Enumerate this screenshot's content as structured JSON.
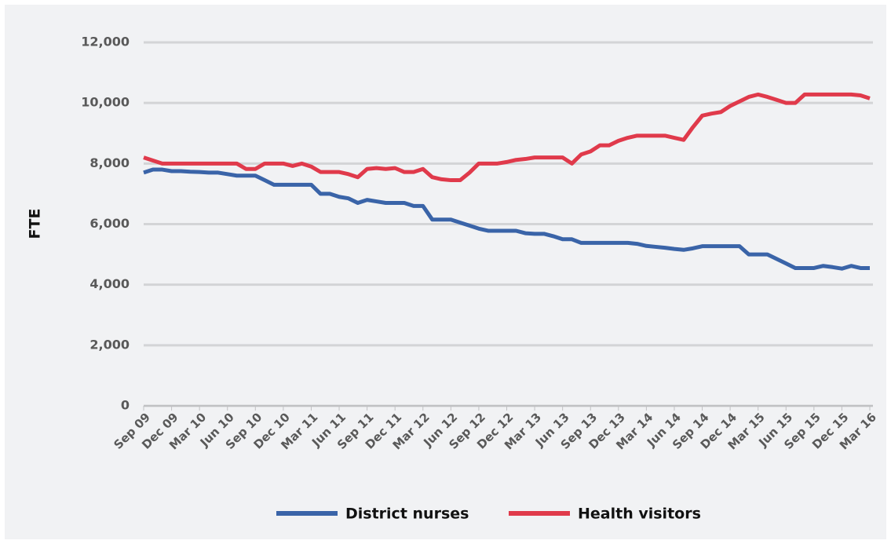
{
  "chart_data": {
    "type": "line",
    "y_label": "FTE",
    "categories": [
      "Sep 09",
      null,
      null,
      "Dec 09",
      null,
      null,
      "Mar 10",
      null,
      null,
      "Jun 10",
      null,
      null,
      "Sep 10",
      null,
      null,
      "Dec 10",
      null,
      null,
      "Mar 11",
      null,
      null,
      "Jun 11",
      null,
      null,
      "Sep 11",
      null,
      null,
      "Dec 11",
      null,
      null,
      "Mar 12",
      null,
      null,
      "Jun 12",
      null,
      null,
      "Sep 12",
      null,
      null,
      "Dec 12",
      null,
      null,
      "Mar 13",
      null,
      null,
      "Jun 13",
      null,
      null,
      "Sep 13",
      null,
      null,
      "Dec 13",
      null,
      null,
      "Mar 14",
      null,
      null,
      "Jun 14",
      null,
      null,
      "Sep 14",
      null,
      null,
      "Dec 14",
      null,
      null,
      "Mar 15",
      null,
      null,
      "Jun 15",
      null,
      null,
      "Sep 15",
      null,
      null,
      "Dec 15",
      null,
      null,
      "Mar 16"
    ],
    "series": [
      {
        "name": "District nurses",
        "color": "#3a64a8",
        "values": [
          7700,
          7800,
          7800,
          7750,
          7750,
          7730,
          7720,
          7700,
          7700,
          7650,
          7600,
          7600,
          7600,
          7450,
          7300,
          7300,
          7300,
          7300,
          7300,
          7000,
          7000,
          6900,
          6850,
          6700,
          6800,
          6750,
          6700,
          6700,
          6700,
          6600,
          6600,
          6150,
          6150,
          6150,
          6050,
          5950,
          5850,
          5780,
          5780,
          5780,
          5780,
          5700,
          5680,
          5680,
          5600,
          5500,
          5500,
          5380,
          5380,
          5380,
          5380,
          5380,
          5380,
          5350,
          5280,
          5250,
          5220,
          5180,
          5150,
          5200,
          5270,
          5270,
          5270,
          5270,
          5270,
          5000,
          5000,
          5000,
          4850,
          4700,
          4550,
          4550,
          4550,
          4620,
          4580,
          4530,
          4620,
          4550,
          4550
        ]
      },
      {
        "name": "Health visitors",
        "color": "#e03a4b",
        "values": [
          8200,
          8100,
          8000,
          8000,
          8000,
          8000,
          8000,
          8000,
          8000,
          8000,
          8000,
          7820,
          7820,
          8000,
          8000,
          8000,
          7920,
          8000,
          7900,
          7720,
          7720,
          7720,
          7650,
          7550,
          7820,
          7850,
          7820,
          7850,
          7720,
          7720,
          7820,
          7550,
          7480,
          7450,
          7450,
          7700,
          8000,
          8000,
          8000,
          8050,
          8120,
          8150,
          8200,
          8200,
          8200,
          8200,
          8000,
          8300,
          8400,
          8600,
          8600,
          8750,
          8850,
          8920,
          8920,
          8920,
          8920,
          8850,
          8780,
          9200,
          9580,
          9650,
          9700,
          9900,
          10050,
          10200,
          10280,
          10200,
          10100,
          10000,
          10000,
          10280,
          10280,
          10280,
          10280,
          10280,
          10280,
          10250,
          10150
        ]
      }
    ],
    "ylim": [
      0,
      12000
    ],
    "yticks": [
      0,
      {
        "value": 2000,
        "label": "2,000"
      },
      {
        "value": 4000,
        "label": "4,000"
      },
      {
        "value": 6000,
        "label": "6,000"
      },
      {
        "value": 8000,
        "label": "8,000"
      },
      {
        "value": 10000,
        "label": "10,000"
      },
      {
        "value": 12000,
        "label": "12,000"
      }
    ],
    "grid": true,
    "legend": "bottom"
  }
}
